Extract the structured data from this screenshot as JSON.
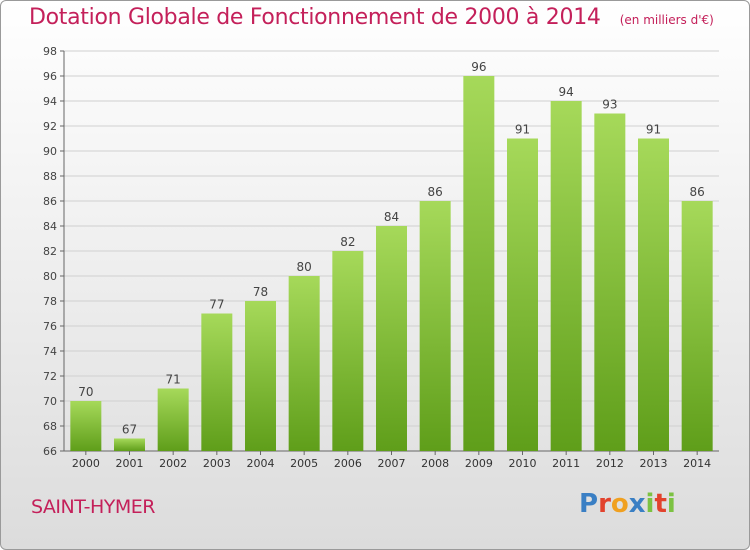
{
  "title": "Dotation Globale de Fonctionnement de 2000 à 2014",
  "subtitle": "(en milliers d'€)",
  "commune": "SAINT-HYMER",
  "logo": {
    "text": "Proxiti",
    "letters": [
      {
        "char": "P",
        "color": "#3a7fc4"
      },
      {
        "char": "r",
        "color": "#e2422d"
      },
      {
        "char": "o",
        "color": "#f0a020"
      },
      {
        "char": "x",
        "color": "#3a7fc4"
      },
      {
        "char": "i",
        "color": "#7cc242"
      },
      {
        "char": "t",
        "color": "#e2422d"
      },
      {
        "char": "i",
        "color": "#7cc242"
      }
    ]
  },
  "colors": {
    "bar_light": "#a6d95a",
    "bar_dark": "#5f9e1a",
    "accent": "#c4205a",
    "grid": "#d0d0d0"
  },
  "chart_data": {
    "type": "bar",
    "categories": [
      "2000",
      "2001",
      "2002",
      "2003",
      "2004",
      "2005",
      "2006",
      "2007",
      "2008",
      "2009",
      "2010",
      "2011",
      "2012",
      "2013",
      "2014"
    ],
    "values": [
      70,
      67,
      71,
      77,
      78,
      80,
      82,
      84,
      86,
      96,
      91,
      94,
      93,
      91,
      86
    ],
    "ylim": [
      66,
      98
    ],
    "yticks": [
      66,
      68,
      70,
      72,
      74,
      76,
      78,
      80,
      82,
      84,
      86,
      88,
      90,
      92,
      94,
      96,
      98
    ],
    "grid": true,
    "data_labels": true,
    "legend": "none"
  }
}
